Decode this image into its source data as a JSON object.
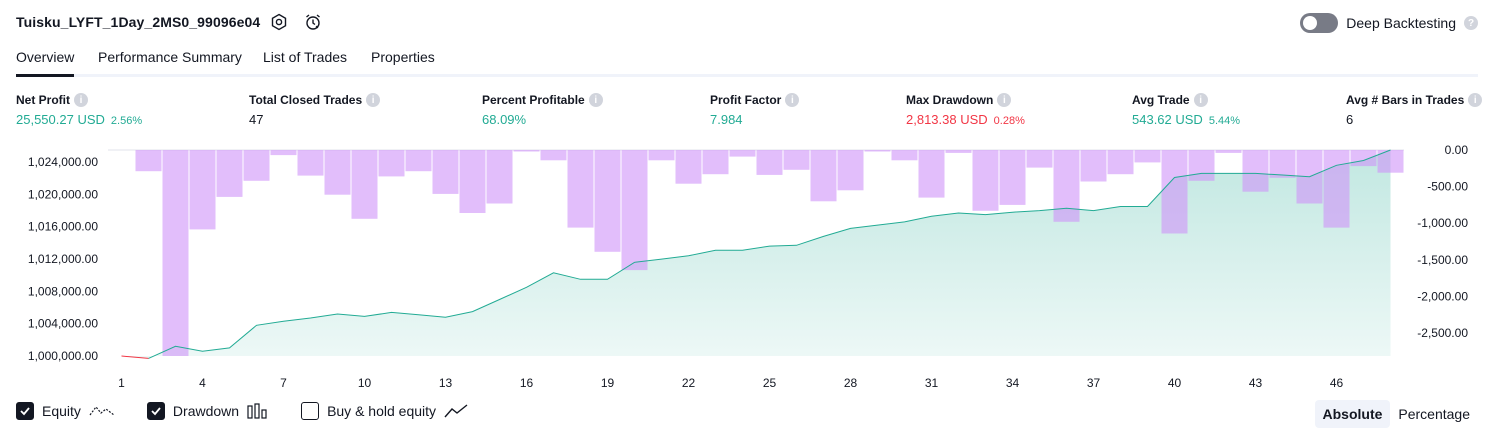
{
  "header": {
    "strategy_title": "Tuisku_LYFT_1Day_2MS0_99096e04",
    "deep_backtesting_label": "Deep Backtesting",
    "help_glyph": "?"
  },
  "tabs": [
    {
      "label": "Overview",
      "active": true
    },
    {
      "label": "Performance Summary",
      "active": false
    },
    {
      "label": "List of Trades",
      "active": false
    },
    {
      "label": "Properties",
      "active": false
    }
  ],
  "stats": {
    "info_glyph": "i",
    "net_profit": {
      "label": "Net Profit",
      "value": "25,550.27 USD",
      "pct": "2.56%"
    },
    "total_closed_trades": {
      "label": "Total Closed Trades",
      "value": "47"
    },
    "percent_profitable": {
      "label": "Percent Profitable",
      "value": "68.09%"
    },
    "profit_factor": {
      "label": "Profit Factor",
      "value": "7.984"
    },
    "max_drawdown": {
      "label": "Max Drawdown",
      "value": "2,813.38 USD",
      "pct": "0.28%"
    },
    "avg_trade": {
      "label": "Avg Trade",
      "value": "543.62 USD",
      "pct": "5.44%"
    },
    "avg_bars": {
      "label": "Avg # Bars in Trades",
      "value": "6"
    }
  },
  "colors": {
    "positive": "#22ab94",
    "negative": "#f23645",
    "equity_line": "#22ab94",
    "drawdown_bar": "#ce93f8",
    "accent_dark": "#131722"
  },
  "chart_data": {
    "type": "line+bar",
    "left_axis": {
      "ticks": [
        "1,024,000.00",
        "1,020,000.00",
        "1,016,000.00",
        "1,012,000.00",
        "1,008,000.00",
        "1,004,000.00",
        "1,000,000.00"
      ],
      "range": [
        1000000,
        1025500
      ]
    },
    "right_axis": {
      "ticks": [
        "0.00",
        "-500.00",
        "-1,000.00",
        "-1,500.00",
        "-2,000.00",
        "-2,500.00"
      ],
      "range": [
        -2813.38,
        0
      ]
    },
    "x_ticks": [
      "1",
      "4",
      "7",
      "10",
      "13",
      "16",
      "19",
      "22",
      "25",
      "28",
      "31",
      "34",
      "37",
      "40",
      "43",
      "46"
    ],
    "x_range": [
      1,
      48
    ],
    "series": [
      {
        "name": "Equity",
        "type": "line",
        "x": [
          1,
          2,
          3,
          4,
          5,
          6,
          7,
          8,
          9,
          10,
          11,
          12,
          13,
          14,
          15,
          16,
          17,
          18,
          19,
          20,
          21,
          22,
          23,
          24,
          25,
          26,
          27,
          28,
          29,
          30,
          31,
          32,
          33,
          34,
          35,
          36,
          37,
          38,
          39,
          40,
          41,
          42,
          43,
          44,
          45,
          46,
          47,
          48
        ],
        "y": [
          1000000,
          999700,
          1001200,
          1000600,
          1001000,
          1003800,
          1004300,
          1004700,
          1005200,
          1004900,
          1005400,
          1005100,
          1004800,
          1005500,
          1007000,
          1008500,
          1010300,
          1009500,
          1009500,
          1011600,
          1012000,
          1012400,
          1013100,
          1013100,
          1013600,
          1013700,
          1014800,
          1015800,
          1016200,
          1016600,
          1017300,
          1017700,
          1017500,
          1017800,
          1018000,
          1018300,
          1018000,
          1018500,
          1018500,
          1022100,
          1022600,
          1022600,
          1022600,
          1022400,
          1022200,
          1023600,
          1024200,
          1025500
        ]
      },
      {
        "name": "Drawdown",
        "type": "bar",
        "values": [
          0,
          -290,
          -2813.38,
          -1085,
          -640,
          -420,
          -70,
          -350,
          -610,
          -940,
          -360,
          -290,
          -600,
          -860,
          -730,
          -20,
          -140,
          -1060,
          -1390,
          -1640,
          -140,
          -460,
          -330,
          -90,
          -340,
          -270,
          -700,
          -550,
          -20,
          -140,
          -650,
          -40,
          -830,
          -750,
          -240,
          -980,
          -430,
          -330,
          -170,
          -1140,
          -420,
          -40,
          -570,
          -380,
          -730,
          -1060,
          -220,
          -310
        ]
      },
      {
        "name": "Buy & hold equity",
        "type": "line",
        "visible": false
      }
    ]
  },
  "legend": {
    "equity_label": "Equity",
    "drawdown_label": "Drawdown",
    "buyhold_label": "Buy & hold equity",
    "equity_checked": true,
    "drawdown_checked": true,
    "buyhold_checked": false
  },
  "mode": {
    "absolute_label": "Absolute",
    "percentage_label": "Percentage",
    "selected": "Absolute"
  }
}
